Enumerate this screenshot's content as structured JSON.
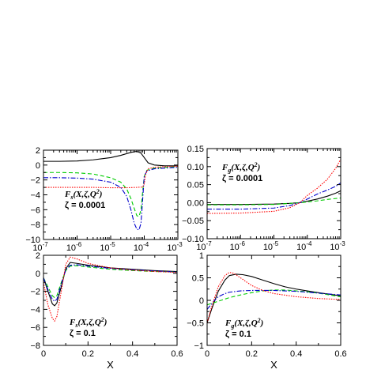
{
  "chart_data": [
    {
      "type": "line",
      "xscale": "log",
      "xlim": [
        1e-07,
        0.001
      ],
      "ylim": [
        -10,
        2
      ],
      "xticks": [
        "10",
        "10",
        "10",
        "10",
        "10"
      ],
      "xtick_exponents": [
        "-7",
        "-6",
        "-5",
        "-4",
        "-3"
      ],
      "yticks": [
        "2",
        "0",
        "−2",
        "−4",
        "−6",
        "−8",
        "−10"
      ],
      "label": "F",
      "label_sub": "s",
      "label_args": "(X,ζ,Q",
      "label_sup": "2",
      "label_close": ")",
      "zeta": "ζ = 0.0001",
      "xlabel": "",
      "series": [
        {
          "style": "solid",
          "color": "#000000",
          "x": [
            1e-07,
            3e-07,
            1e-06,
            3e-06,
            1e-05,
            2e-05,
            4e-05,
            6e-05,
            8e-05,
            0.0001,
            0.00013,
            0.0002,
            0.0004,
            0.001
          ],
          "y": [
            0.5,
            0.5,
            0.55,
            0.7,
            1.0,
            1.3,
            1.7,
            1.85,
            1.6,
            1.0,
            0.3,
            0.0,
            -0.1,
            -0.1
          ]
        },
        {
          "style": "dashed",
          "color": "#00cc00",
          "x": [
            1e-07,
            3e-07,
            1e-06,
            3e-06,
            1e-05,
            2e-05,
            3e-05,
            4e-05,
            5e-05,
            6e-05,
            7e-05,
            8e-05,
            9e-05,
            0.0001,
            0.00012,
            0.0002,
            0.001
          ],
          "y": [
            -1.0,
            -1.0,
            -1.05,
            -1.2,
            -1.7,
            -2.3,
            -3.2,
            -4.5,
            -5.8,
            -6.8,
            -6.9,
            -6.0,
            -3.5,
            -1.5,
            -0.7,
            -0.4,
            -0.2
          ]
        },
        {
          "style": "dashdot",
          "color": "#0000cc",
          "x": [
            1e-07,
            3e-07,
            1e-06,
            3e-06,
            1e-05,
            2e-05,
            3e-05,
            4e-05,
            5e-05,
            6e-05,
            7e-05,
            8e-05,
            9e-05,
            0.0001,
            0.00012,
            0.0002,
            0.001
          ],
          "y": [
            -1.7,
            -1.7,
            -1.75,
            -1.9,
            -2.3,
            -3.0,
            -4.2,
            -6.0,
            -7.8,
            -8.6,
            -8.7,
            -7.8,
            -4.5,
            -1.5,
            -0.8,
            -0.5,
            -0.3
          ]
        },
        {
          "style": "dotted",
          "color": "#ff0000",
          "x": [
            1e-07,
            3e-07,
            1e-06,
            3e-06,
            1e-05,
            3e-05,
            6e-05,
            9e-05,
            0.0001,
            0.00011,
            0.00013,
            0.0002,
            0.0005,
            0.001
          ],
          "y": [
            -3.0,
            -3.0,
            -3.0,
            -3.0,
            -3.05,
            -3.05,
            -3.0,
            -2.95,
            -2.5,
            -1.2,
            -0.5,
            -0.3,
            -0.2,
            -0.15
          ]
        }
      ]
    },
    {
      "type": "line",
      "xscale": "log",
      "xlim": [
        1e-07,
        0.001
      ],
      "ylim": [
        -0.1,
        0.15
      ],
      "xticks": [
        "10",
        "10",
        "10",
        "10",
        "10"
      ],
      "xtick_exponents": [
        "-7",
        "-6",
        "-5",
        "-4",
        "-3"
      ],
      "yticks": [
        "0.15",
        "0.10",
        "0.05",
        "0.00",
        "−0.05",
        "−0.10"
      ],
      "label": "F",
      "label_sub": "g",
      "label_args": "(X,ζ,Q",
      "label_sup": "2",
      "label_close": ")",
      "zeta": "ζ = 0.0001",
      "xlabel": "",
      "series": [
        {
          "style": "solid",
          "color": "#000000",
          "x": [
            1e-07,
            1e-06,
            1e-05,
            3e-05,
            6e-05,
            0.0001,
            0.0002,
            0.0004,
            0.0007,
            0.001
          ],
          "y": [
            -0.005,
            -0.005,
            -0.004,
            -0.002,
            0.0,
            0.004,
            0.01,
            0.018,
            0.026,
            0.033
          ]
        },
        {
          "style": "dashed",
          "color": "#00cc00",
          "x": [
            1e-07,
            1e-06,
            1e-05,
            3e-05,
            6e-05,
            0.0001,
            0.0002,
            0.0004,
            0.001
          ],
          "y": [
            -0.006,
            -0.006,
            -0.005,
            -0.002,
            0.0,
            0.002,
            0.005,
            0.009,
            0.013
          ]
        },
        {
          "style": "dashdot",
          "color": "#0000cc",
          "x": [
            1e-07,
            1e-06,
            1e-05,
            3e-05,
            6e-05,
            0.0001,
            0.0002,
            0.0004,
            0.0007,
            0.001
          ],
          "y": [
            -0.018,
            -0.018,
            -0.015,
            -0.008,
            0.0,
            0.01,
            0.024,
            0.035,
            0.045,
            0.055
          ]
        },
        {
          "style": "dotted",
          "color": "#ff0000",
          "x": [
            1e-07,
            1e-06,
            1e-05,
            3e-05,
            6e-05,
            0.0001,
            0.0002,
            0.0004,
            0.0007,
            0.001
          ],
          "y": [
            -0.03,
            -0.029,
            -0.024,
            -0.014,
            0.0,
            0.02,
            0.04,
            0.065,
            0.095,
            0.12
          ]
        }
      ]
    },
    {
      "type": "line",
      "xscale": "linear",
      "xlim": [
        0,
        0.6
      ],
      "ylim": [
        -8,
        2
      ],
      "xticks": [
        "0",
        "0.2",
        "0.4",
        "0.6"
      ],
      "yticks": [
        "2",
        "0",
        "−2",
        "−4",
        "−6",
        "−8"
      ],
      "label": "F",
      "label_sub": "s",
      "label_args": "(X,ζ,Q",
      "label_sup": "2",
      "label_close": ")",
      "zeta": "ζ = 0.1",
      "xlabel": "X",
      "series": [
        {
          "style": "solid",
          "color": "#000000",
          "x": [
            0.0,
            0.02,
            0.04,
            0.05,
            0.06,
            0.08,
            0.1,
            0.12,
            0.15,
            0.2,
            0.3,
            0.4,
            0.5,
            0.6
          ],
          "y": [
            -0.5,
            -2.0,
            -3.4,
            -3.6,
            -3.3,
            -1.5,
            0.5,
            1.2,
            1.1,
            0.9,
            0.6,
            0.45,
            0.3,
            0.2
          ]
        },
        {
          "style": "dashed",
          "color": "#00cc00",
          "x": [
            0.0,
            0.02,
            0.04,
            0.05,
            0.06,
            0.08,
            0.1,
            0.12,
            0.15,
            0.2,
            0.3,
            0.4,
            0.5,
            0.6
          ],
          "y": [
            -0.5,
            -1.5,
            -2.5,
            -2.7,
            -2.5,
            -1.0,
            0.3,
            0.8,
            0.85,
            0.7,
            0.45,
            0.3,
            0.2,
            0.15
          ]
        },
        {
          "style": "dashdot",
          "color": "#0000cc",
          "x": [
            0.0,
            0.02,
            0.04,
            0.05,
            0.06,
            0.08,
            0.1,
            0.12,
            0.15,
            0.2,
            0.3,
            0.4,
            0.5,
            0.6
          ],
          "y": [
            -0.5,
            -1.8,
            -2.9,
            -3.1,
            -2.9,
            -1.2,
            0.4,
            0.9,
            0.95,
            0.8,
            0.55,
            0.4,
            0.25,
            0.15
          ]
        },
        {
          "style": "dotted",
          "color": "#ff0000",
          "x": [
            0.0,
            0.02,
            0.04,
            0.05,
            0.06,
            0.08,
            0.1,
            0.12,
            0.15,
            0.2,
            0.3,
            0.4,
            0.5,
            0.6
          ],
          "y": [
            -1.0,
            -3.5,
            -5.0,
            -5.3,
            -4.8,
            -2.0,
            1.0,
            1.8,
            1.6,
            1.1,
            0.6,
            0.35,
            0.2,
            0.1
          ]
        }
      ]
    },
    {
      "type": "line",
      "xscale": "linear",
      "xlim": [
        0,
        0.6
      ],
      "ylim": [
        -1,
        1
      ],
      "xticks": [
        "0",
        "0.2",
        "0.4",
        "0.6"
      ],
      "yticks": [
        "1",
        "0.5",
        "0",
        "−0.5",
        "−1"
      ],
      "label": "F",
      "label_sub": "g",
      "label_args": "(X,ζ,Q",
      "label_sup": "2",
      "label_close": ")",
      "zeta": "ζ = 0.1",
      "xlabel": "X",
      "series": [
        {
          "style": "solid",
          "color": "#000000",
          "x": [
            0.0,
            0.02,
            0.05,
            0.08,
            0.1,
            0.13,
            0.16,
            0.2,
            0.25,
            0.3,
            0.35,
            0.4,
            0.5,
            0.6
          ],
          "y": [
            -0.5,
            -0.2,
            0.2,
            0.45,
            0.55,
            0.58,
            0.57,
            0.53,
            0.45,
            0.37,
            0.3,
            0.25,
            0.17,
            0.1
          ]
        },
        {
          "style": "dashed",
          "color": "#00cc00",
          "x": [
            0.0,
            0.05,
            0.1,
            0.15,
            0.2,
            0.25,
            0.3,
            0.35,
            0.4,
            0.45,
            0.5,
            0.55,
            0.6
          ],
          "y": [
            -0.1,
            -0.02,
            0.06,
            0.12,
            0.17,
            0.21,
            0.23,
            0.23,
            0.21,
            0.19,
            0.16,
            0.12,
            0.08
          ]
        },
        {
          "style": "dashdot",
          "color": "#0000cc",
          "x": [
            0.0,
            0.03,
            0.05,
            0.08,
            0.1,
            0.15,
            0.2,
            0.25,
            0.3,
            0.35,
            0.4,
            0.5,
            0.6
          ],
          "y": [
            -0.2,
            -0.02,
            0.08,
            0.15,
            0.18,
            0.21,
            0.22,
            0.22,
            0.22,
            0.21,
            0.2,
            0.16,
            0.12
          ]
        },
        {
          "style": "dotted",
          "color": "#ff0000",
          "x": [
            0.0,
            0.02,
            0.05,
            0.08,
            0.1,
            0.12,
            0.15,
            0.2,
            0.25,
            0.3,
            0.4,
            0.5,
            0.6
          ],
          "y": [
            -0.5,
            -0.15,
            0.3,
            0.55,
            0.62,
            0.6,
            0.5,
            0.33,
            0.22,
            0.15,
            0.08,
            0.04,
            0.02
          ]
        }
      ]
    }
  ]
}
